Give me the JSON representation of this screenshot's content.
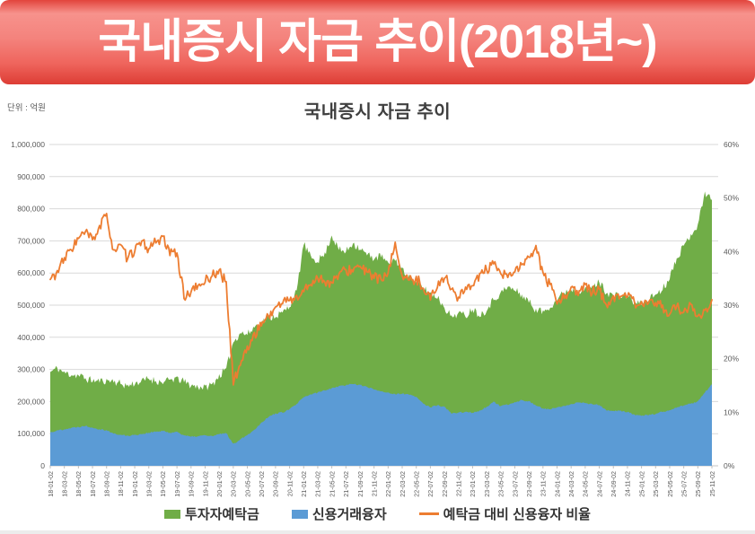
{
  "banner": {
    "title": "국내증시 자금 추이(2018년~)",
    "bg_color": "#f4726b",
    "text_color": "#ffffff"
  },
  "chart": {
    "title": "국내증시 자금 추이",
    "unit_label": "단위 : 억원",
    "legend": [
      {
        "label": "투자자예탁금",
        "color": "#70ad47",
        "marker": "area-swatch"
      },
      {
        "label": "신용거래융자",
        "color": "#5b9bd5",
        "marker": "area-swatch"
      },
      {
        "label": "예탁금 대비 신용융자 비율",
        "color": "#ed7d31",
        "marker": "line-swatch"
      }
    ]
  },
  "chart_data": {
    "type": "area",
    "title": "국내증시 자금 추이",
    "x_start": "18-01-02",
    "x_end": "25-11-02",
    "x_labels": [
      "18-01-02",
      "18-03-02",
      "18-05-02",
      "18-07-02",
      "18-09-02",
      "18-11-02",
      "19-01-02",
      "19-03-02",
      "19-05-02",
      "19-07-02",
      "19-09-02",
      "19-11-02",
      "20-01-02",
      "20-03-02",
      "20-05-02",
      "20-07-02",
      "20-09-02",
      "20-11-02",
      "21-01-02",
      "21-03-02",
      "21-05-02",
      "21-07-02",
      "21-09-02",
      "21-11-02",
      "22-01-02",
      "22-03-02",
      "22-05-02",
      "22-07-02",
      "22-09-02",
      "22-11-02",
      "23-01-02",
      "23-03-02",
      "23-05-02",
      "23-07-02",
      "23-09-02",
      "23-11-02",
      "24-01-02",
      "24-03-02",
      "24-05-02",
      "24-07-02",
      "24-09-02",
      "24-11-02",
      "25-01-02",
      "25-03-02",
      "25-05-02",
      "25-07-02",
      "25-09-02",
      "25-11-02"
    ],
    "left_axis": {
      "min": 0,
      "max": 1000000,
      "tick_step": 100000,
      "labels": [
        "1,000,000",
        "900,000",
        "800,000",
        "700,000",
        "600,000",
        "500,000",
        "400,000",
        "300,000",
        "200,000",
        "100,000",
        "0"
      ]
    },
    "right_axis": {
      "min": 0,
      "max": 60,
      "tick_step": 10,
      "labels": [
        "60%",
        "50%",
        "40%",
        "30%",
        "20%",
        "10%",
        "0%"
      ]
    },
    "grid": true,
    "legend_position": "bottom",
    "series": [
      {
        "name": "투자자예탁금",
        "type": "area",
        "axis": "left",
        "color": "#70ad47",
        "monthly_values": [
          292000,
          304000,
          290000,
          284000,
          281000,
          272000,
          264000,
          262000,
          267000,
          263000,
          255000,
          250000,
          256000,
          264000,
          271000,
          265000,
          258000,
          267000,
          273000,
          261000,
          250000,
          246000,
          245000,
          253000,
          282000,
          300000,
          385000,
          415000,
          408000,
          432000,
          446000,
          462000,
          466000,
          476000,
          497000,
          542000,
          690000,
          650000,
          638000,
          660000,
          718000,
          672000,
          666000,
          694000,
          676000,
          656000,
          646000,
          652000,
          628000,
          642000,
          612000,
          592000,
          568000,
          552000,
          538000,
          524000,
          494000,
          464000,
          476000,
          466000,
          490000,
          468000,
          486000,
          518000,
          538000,
          556000,
          546000,
          532000,
          510000,
          486000,
          480000,
          496000,
          516000,
          540000,
          550000,
          546000,
          550000,
          556000,
          572000,
          540000,
          530000,
          526000,
          532000,
          506000,
          504000,
          518000,
          534000,
          550000,
          586000,
          650000,
          682000,
          722000,
          748000,
          852000,
          828000
        ]
      },
      {
        "name": "신용거래융자",
        "type": "area",
        "axis": "left",
        "color": "#5b9bd5",
        "monthly_values": [
          104000,
          110000,
          114000,
          118000,
          121000,
          124500,
          119000,
          114000,
          111000,
          100000,
          96000,
          94000,
          96000,
          99000,
          103000,
          106000,
          108000,
          103000,
          106000,
          95000,
          90000,
          92000,
          95000,
          92000,
          98000,
          102000,
          68000,
          83000,
          96000,
          112000,
          135000,
          152000,
          163000,
          166000,
          176000,
          192000,
          213000,
          222000,
          228000,
          235000,
          242000,
          248000,
          251000,
          255000,
          252000,
          245000,
          238000,
          232000,
          228000,
          222000,
          225000,
          221000,
          214000,
          194000,
          182000,
          188000,
          184000,
          162000,
          166000,
          168000,
          165000,
          172000,
          183000,
          199000,
          185000,
          190000,
          198000,
          205000,
          201000,
          188000,
          178000,
          176000,
          181000,
          186000,
          193000,
          198000,
          195000,
          192000,
          190000,
          172000,
          170000,
          172000,
          167000,
          159000,
          155000,
          158000,
          162000,
          168000,
          173000,
          181000,
          188000,
          193000,
          201000,
          228000,
          254000
        ]
      },
      {
        "name": "예탁금 대비 신용융자 비율",
        "type": "line",
        "axis": "right",
        "color": "#ed7d31",
        "monthly_values": [
          34.8,
          36.2,
          38.6,
          40.6,
          42.4,
          43.6,
          42.2,
          44.6,
          46.8,
          40.2,
          41.0,
          38.6,
          40.4,
          41.6,
          40.5,
          42.0,
          42.5,
          39.5,
          40.0,
          31.5,
          32.5,
          33.5,
          34.5,
          35.5,
          36.5,
          34.0,
          15.5,
          19.0,
          22.0,
          24.5,
          26.5,
          28.0,
          29.5,
          30.5,
          31.0,
          31.5,
          32.5,
          34.0,
          35.2,
          34.5,
          34.0,
          35.8,
          36.4,
          36.6,
          37.2,
          36.0,
          35.4,
          34.6,
          35.6,
          41.8,
          35.4,
          34.4,
          35.0,
          33.4,
          31.2,
          33.6,
          35.4,
          33.0,
          31.4,
          33.0,
          34.0,
          35.6,
          36.6,
          37.4,
          35.8,
          35.2,
          36.4,
          37.4,
          38.6,
          40.8,
          36.0,
          33.6,
          30.5,
          31.5,
          33.5,
          32.0,
          33.5,
          32.5,
          33.0,
          29.8,
          31.4,
          32.0,
          31.6,
          30.4,
          30.4,
          30.0,
          30.6,
          29.8,
          28.4,
          29.6,
          28.6,
          29.8,
          28.2,
          28.8,
          31.0
        ]
      }
    ],
    "render_hints": {
      "upsample": 6,
      "noise_amplitude": [
        13000,
        2400,
        1.0
      ],
      "x_label_rotation": -90
    }
  }
}
